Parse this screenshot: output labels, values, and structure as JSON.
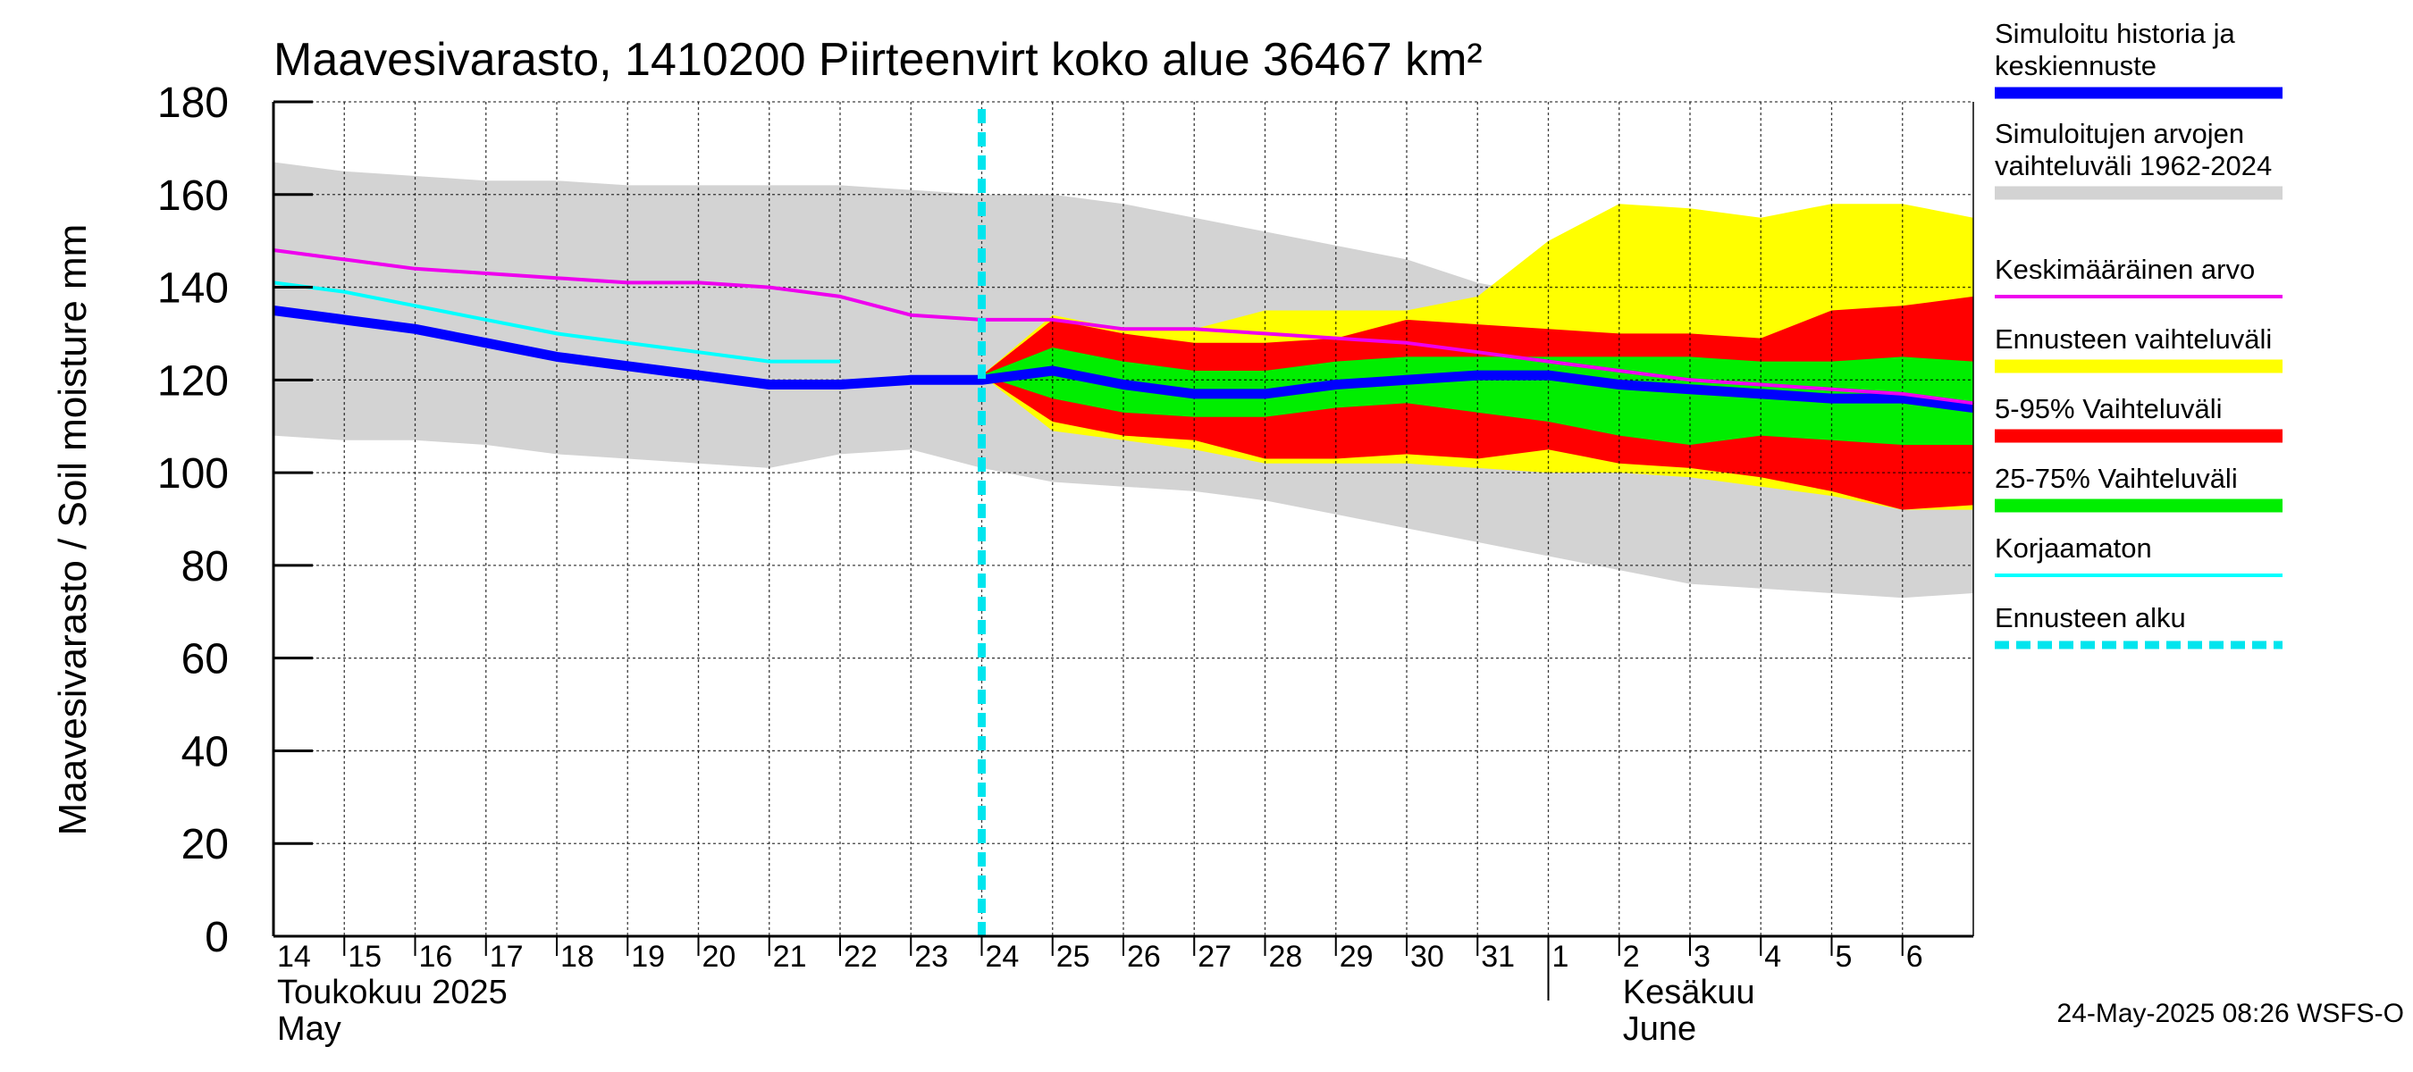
{
  "chart_data": {
    "type": "area",
    "title": "Maavesivarasto, 1410200 Piirteenvirt koko alue 36467 km²",
    "ylabel": "Maavesivarasto / Soil moisture   mm",
    "ylim": [
      0,
      180
    ],
    "yticks": [
      0,
      20,
      40,
      60,
      80,
      100,
      120,
      140,
      160,
      180
    ],
    "x_days": [
      "14",
      "15",
      "16",
      "17",
      "18",
      "19",
      "20",
      "21",
      "22",
      "23",
      "24",
      "25",
      "26",
      "27",
      "28",
      "29",
      "30",
      "31",
      "1",
      "2",
      "3",
      "4",
      "5",
      "6"
    ],
    "x_start": "2025-05-14",
    "x_end": "2025-06-07",
    "month_labels": [
      {
        "date": "2025-05-14",
        "line1": "Toukokuu  2025",
        "line2": "May"
      },
      {
        "date": "2025-06-02",
        "line1": "Kesäkuu",
        "line2": "June"
      }
    ],
    "month_separator": "2025-06-01",
    "forecast_start": "2025-05-24",
    "grid": true,
    "legend_position": "right",
    "series": [
      {
        "name": "Simuloitujen arvojen vaihteluväli 1962-2024",
        "kind": "band",
        "color": "#d3d3d3",
        "x": [
          "2025-05-14",
          "2025-05-15",
          "2025-05-16",
          "2025-05-17",
          "2025-05-18",
          "2025-05-19",
          "2025-05-20",
          "2025-05-21",
          "2025-05-22",
          "2025-05-23",
          "2025-05-24",
          "2025-05-25",
          "2025-05-26",
          "2025-05-27",
          "2025-05-28",
          "2025-05-29",
          "2025-05-30",
          "2025-05-31",
          "2025-06-01",
          "2025-06-02",
          "2025-06-03",
          "2025-06-04",
          "2025-06-05",
          "2025-06-06",
          "2025-06-07"
        ],
        "upper": [
          167,
          165,
          164,
          163,
          163,
          162,
          162,
          162,
          162,
          161,
          160,
          160,
          158,
          155,
          152,
          149,
          146,
          141,
          138,
          137,
          137,
          136,
          136,
          136,
          137
        ],
        "lower": [
          108,
          107,
          107,
          106,
          104,
          103,
          102,
          101,
          104,
          105,
          101,
          98,
          97,
          96,
          94,
          91,
          88,
          85,
          82,
          79,
          76,
          75,
          74,
          73,
          74
        ]
      },
      {
        "name": "Ennusteen vaihteluväli",
        "kind": "band",
        "color": "#ffff00",
        "x": [
          "2025-05-24",
          "2025-05-25",
          "2025-05-26",
          "2025-05-27",
          "2025-05-28",
          "2025-05-29",
          "2025-05-30",
          "2025-05-31",
          "2025-06-01",
          "2025-06-02",
          "2025-06-03",
          "2025-06-04",
          "2025-06-05",
          "2025-06-06",
          "2025-06-07"
        ],
        "upper": [
          121,
          134,
          131,
          131,
          135,
          135,
          135,
          138,
          150,
          158,
          157,
          155,
          158,
          158,
          155
        ],
        "lower": [
          121,
          109,
          107,
          105,
          102,
          102,
          102,
          101,
          100,
          100,
          99,
          97,
          95,
          92,
          92
        ]
      },
      {
        "name": "5-95% Vaihteluväli",
        "kind": "band",
        "color": "#ff0000",
        "x": [
          "2025-05-24",
          "2025-05-25",
          "2025-05-26",
          "2025-05-27",
          "2025-05-28",
          "2025-05-29",
          "2025-05-30",
          "2025-05-31",
          "2025-06-01",
          "2025-06-02",
          "2025-06-03",
          "2025-06-04",
          "2025-06-05",
          "2025-06-06",
          "2025-06-07"
        ],
        "upper": [
          121,
          133,
          130,
          128,
          128,
          129,
          133,
          132,
          131,
          130,
          130,
          129,
          135,
          136,
          138
        ],
        "lower": [
          121,
          111,
          108,
          107,
          103,
          103,
          104,
          103,
          105,
          102,
          101,
          99,
          96,
          92,
          93
        ]
      },
      {
        "name": "25-75% Vaihteluväli",
        "kind": "band",
        "color": "#00ee00",
        "x": [
          "2025-05-24",
          "2025-05-25",
          "2025-05-26",
          "2025-05-27",
          "2025-05-28",
          "2025-05-29",
          "2025-05-30",
          "2025-05-31",
          "2025-06-01",
          "2025-06-02",
          "2025-06-03",
          "2025-06-04",
          "2025-06-05",
          "2025-06-06",
          "2025-06-07"
        ],
        "upper": [
          121,
          127,
          124,
          122,
          122,
          124,
          125,
          125,
          125,
          125,
          125,
          124,
          124,
          125,
          124
        ],
        "lower": [
          121,
          116,
          113,
          112,
          112,
          114,
          115,
          113,
          111,
          108,
          106,
          108,
          107,
          106,
          106
        ]
      },
      {
        "name": "Simuloitu historia ja keskiennuste",
        "kind": "line",
        "color": "#0000ff",
        "width": 11,
        "x": [
          "2025-05-14",
          "2025-05-15",
          "2025-05-16",
          "2025-05-17",
          "2025-05-18",
          "2025-05-19",
          "2025-05-20",
          "2025-05-21",
          "2025-05-22",
          "2025-05-23",
          "2025-05-24",
          "2025-05-25",
          "2025-05-26",
          "2025-05-27",
          "2025-05-28",
          "2025-05-29",
          "2025-05-30",
          "2025-05-31",
          "2025-06-01",
          "2025-06-02",
          "2025-06-03",
          "2025-06-04",
          "2025-06-05",
          "2025-06-06",
          "2025-06-07"
        ],
        "values": [
          135,
          133,
          131,
          128,
          125,
          123,
          121,
          119,
          119,
          120,
          120,
          122,
          119,
          117,
          117,
          119,
          120,
          121,
          121,
          119,
          118,
          117,
          116,
          116,
          114
        ]
      },
      {
        "name": "Keskimääräinen arvo",
        "kind": "line",
        "color": "#ee00ee",
        "width": 4,
        "x": [
          "2025-05-14",
          "2025-05-15",
          "2025-05-16",
          "2025-05-17",
          "2025-05-18",
          "2025-05-19",
          "2025-05-20",
          "2025-05-21",
          "2025-05-22",
          "2025-05-23",
          "2025-05-24",
          "2025-05-25",
          "2025-05-26",
          "2025-05-27",
          "2025-05-28",
          "2025-05-29",
          "2025-05-30",
          "2025-05-31",
          "2025-06-01",
          "2025-06-02",
          "2025-06-03",
          "2025-06-04",
          "2025-06-05",
          "2025-06-06",
          "2025-06-07"
        ],
        "values": [
          148,
          146,
          144,
          143,
          142,
          141,
          141,
          140,
          138,
          134,
          133,
          133,
          131,
          131,
          130,
          129,
          128,
          126,
          124,
          122,
          120,
          119,
          118,
          117,
          115
        ]
      },
      {
        "name": "Korjaamaton",
        "kind": "line",
        "color": "#00ffff",
        "width": 4,
        "x": [
          "2025-05-14",
          "2025-05-15",
          "2025-05-16",
          "2025-05-17",
          "2025-05-18",
          "2025-05-19",
          "2025-05-20",
          "2025-05-21",
          "2025-05-22"
        ],
        "values": [
          141,
          139,
          136,
          133,
          130,
          128,
          126,
          124,
          124
        ]
      },
      {
        "name": "Ennusteen alku",
        "kind": "vline",
        "color": "#00e5ee",
        "x": "2025-05-24"
      }
    ],
    "legend": [
      {
        "label": "Simuloitu historia ja keskiennuste",
        "color": "#0000ff",
        "style": "thick"
      },
      {
        "label": "Simuloitujen arvojen vaihteluväli 1962-2024",
        "color": "#d3d3d3",
        "style": "band"
      },
      {
        "label": "Keskimääräinen arvo",
        "color": "#ee00ee",
        "style": "thin"
      },
      {
        "label": "Ennusteen vaihteluväli",
        "color": "#ffff00",
        "style": "band"
      },
      {
        "label": "5-95% Vaihteluväli",
        "color": "#ff0000",
        "style": "band"
      },
      {
        "label": "25-75% Vaihteluväli",
        "color": "#00ee00",
        "style": "band"
      },
      {
        "label": "Korjaamaton",
        "color": "#00ffff",
        "style": "thin"
      },
      {
        "label": "Ennusteen alku",
        "color": "#00e5ee",
        "style": "dashed"
      }
    ],
    "timestamp": "24-May-2025 08:26 WSFS-O"
  }
}
